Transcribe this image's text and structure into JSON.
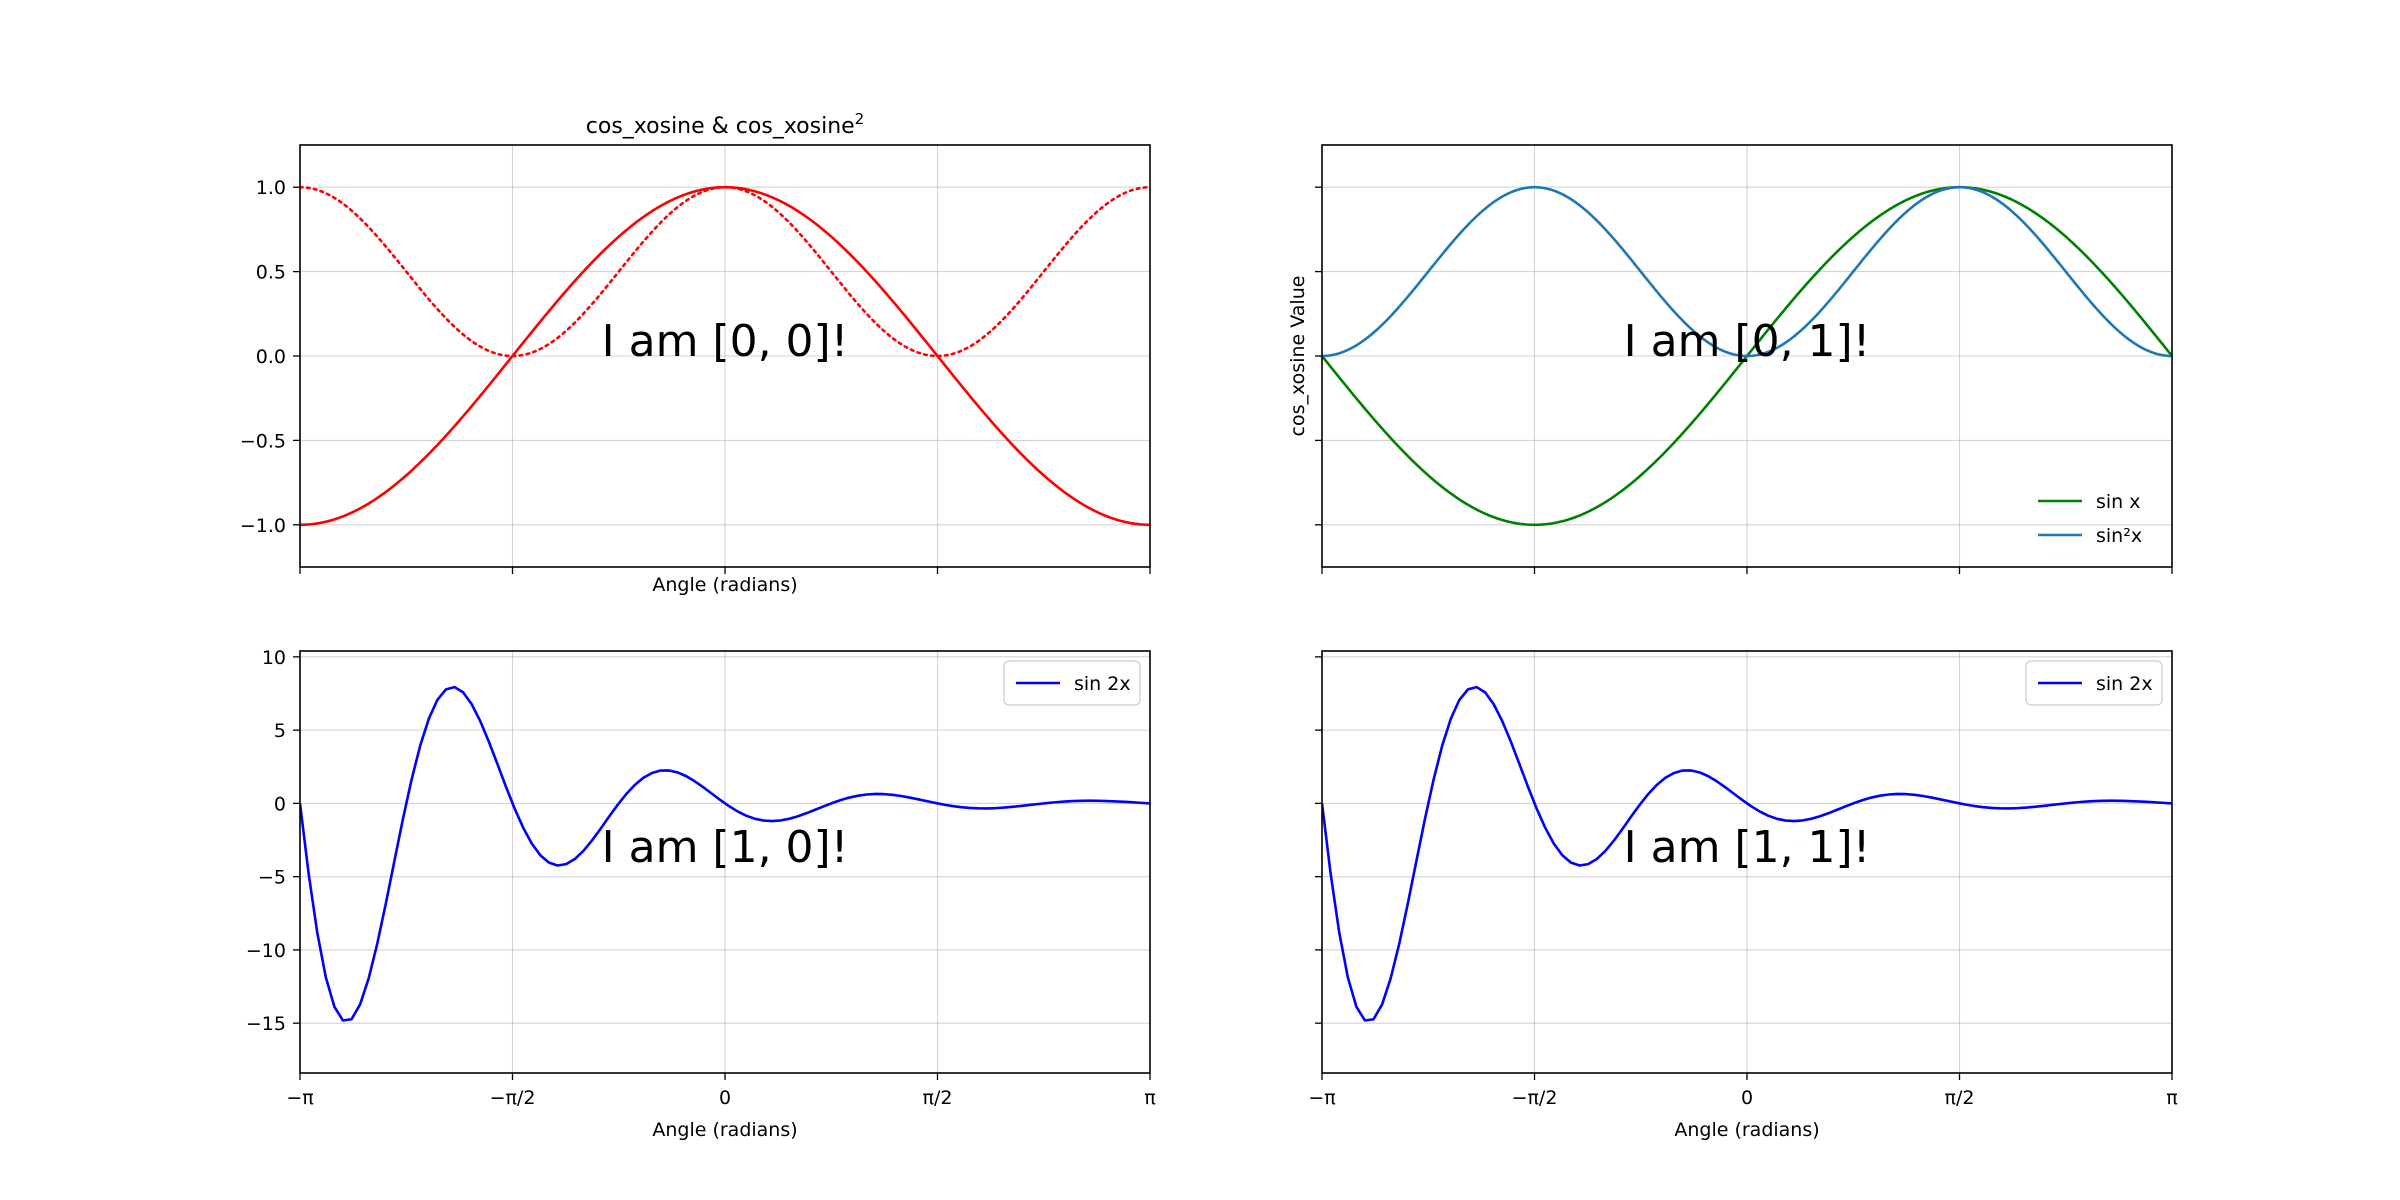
{
  "chart_data": [
    {
      "type": "line",
      "position": "top-left",
      "title": "cos_xosine & cos_xosine",
      "title_sup": "2",
      "xlabel": "Angle (radians)",
      "ylabel": "",
      "xlim": [
        -3.14159,
        3.14159
      ],
      "ylim": [
        -1.25,
        1.25
      ],
      "show_xticklabels": false,
      "show_yticklabels": true,
      "xticks": [
        -3.14159,
        -1.5708,
        0,
        1.5708,
        3.14159
      ],
      "xtick_labels": [
        "−π",
        "−π/2",
        "0",
        "π/2",
        "π"
      ],
      "yticks": [
        1.0,
        0.5,
        0.0,
        -0.5,
        -1.0
      ],
      "ytick_labels": [
        "1.0",
        "0.5",
        "0.0",
        "−0.5",
        "−1.0"
      ],
      "grid": true,
      "annotation": "I am [0, 0]!",
      "legend": null,
      "series": [
        {
          "function": "cos(x)",
          "color": "#ff0000",
          "style": "solid"
        },
        {
          "function": "cos(x)^2",
          "color": "#ff0000",
          "style": "dotted"
        }
      ]
    },
    {
      "type": "line",
      "position": "top-right",
      "title": "",
      "xlabel": "",
      "ylabel": "cos_xosine Value",
      "xlim": [
        -3.14159,
        3.14159
      ],
      "ylim": [
        -1.25,
        1.25
      ],
      "show_xticklabels": false,
      "show_yticklabels": false,
      "xticks": [
        -3.14159,
        -1.5708,
        0,
        1.5708,
        3.14159
      ],
      "yticks": [
        1.0,
        0.5,
        0.0,
        -0.5,
        -1.0
      ],
      "grid": true,
      "annotation": "I am [0, 1]!",
      "legend": {
        "placement": "lower-right",
        "entries": [
          {
            "label": "sin x",
            "color": "#008000"
          },
          {
            "label": "sin²x",
            "color": "#1f77b4"
          }
        ]
      },
      "series": [
        {
          "name": "sin x",
          "function": "sin(x)",
          "color": "#008000",
          "style": "solid"
        },
        {
          "name": "sin²x",
          "function": "sin(x)^2",
          "color": "#1f77b4",
          "style": "solid"
        }
      ]
    },
    {
      "type": "line",
      "position": "bottom-left",
      "title": "",
      "xlabel": "Angle (radians)",
      "ylabel": "",
      "xlim": [
        -3.14159,
        3.14159
      ],
      "ylim": [
        -18.4,
        10.4
      ],
      "show_xticklabels": true,
      "show_yticklabels": true,
      "xticks": [
        -3.14159,
        -1.5708,
        0,
        1.5708,
        3.14159
      ],
      "xtick_labels": [
        "−π",
        "−π/2",
        "0",
        "π/2",
        "π"
      ],
      "yticks": [
        10,
        5,
        0,
        -5,
        -10,
        -15
      ],
      "ytick_labels": [
        "10",
        "5",
        "0",
        "−5",
        "−10",
        "−15"
      ],
      "grid": true,
      "annotation": "I am [1, 0]!",
      "legend": {
        "placement": "upper-right",
        "entries": [
          {
            "label": "sin 2x",
            "color": "#0000ff"
          }
        ]
      },
      "series": [
        {
          "name": "sin 2x",
          "function": "-20*exp(-0.8*(x+pi))*sin(4*(x+pi))",
          "color": "#0000ff",
          "style": "solid",
          "samples": 100
        }
      ]
    },
    {
      "type": "line",
      "position": "bottom-right",
      "title": "",
      "xlabel": "Angle (radians)",
      "ylabel": "",
      "xlim": [
        -3.14159,
        3.14159
      ],
      "ylim": [
        -18.4,
        10.4
      ],
      "show_xticklabels": true,
      "show_yticklabels": false,
      "xticks": [
        -3.14159,
        -1.5708,
        0,
        1.5708,
        3.14159
      ],
      "xtick_labels": [
        "−π",
        "−π/2",
        "0",
        "π/2",
        "π"
      ],
      "yticks": [
        10,
        5,
        0,
        -5,
        -10,
        -15
      ],
      "grid": true,
      "annotation": "I am [1, 1]!",
      "legend": {
        "placement": "upper-right",
        "entries": [
          {
            "label": "sin 2x",
            "color": "#0000ff"
          }
        ]
      },
      "series": [
        {
          "name": "sin 2x",
          "function": "-20*exp(-0.8*(x+pi))*sin(4*(x+pi))",
          "color": "#0000ff",
          "style": "solid",
          "samples": 100
        }
      ]
    }
  ]
}
